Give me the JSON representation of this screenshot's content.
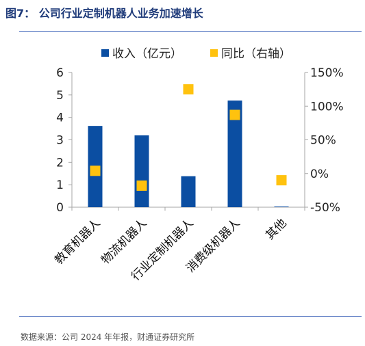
{
  "figure": {
    "title": "图7：  公司行业定制机器人业务加速增长",
    "source": "数据来源：公司 2024 年年报，财通证券研究所"
  },
  "colors": {
    "bar": "#0b4ea2",
    "marker": "#ffc20e",
    "rule": "#3d63b8",
    "title": "#1f3b7a",
    "axis": "#a6a6a6"
  },
  "chart_data": {
    "type": "bar",
    "categories": [
      "教育机器人",
      "物流机器人",
      "行业定制机器人",
      "消费级机器人",
      "其他"
    ],
    "series": [
      {
        "name": "收入（亿元）",
        "type": "bar",
        "axis": "left",
        "values": [
          3.62,
          3.2,
          1.38,
          4.75,
          0.03
        ]
      },
      {
        "name": "同比（右轴）",
        "type": "scatter",
        "axis": "right",
        "values": [
          4,
          -18,
          125,
          87,
          -10
        ]
      }
    ],
    "y_left": {
      "ylim": [
        0,
        6
      ],
      "ticks": [
        "0",
        "1",
        "2",
        "3",
        "4",
        "5",
        "6"
      ]
    },
    "y_right": {
      "ylim": [
        -50,
        150
      ],
      "ticks": [
        "-50%",
        "0%",
        "50%",
        "100%",
        "150%"
      ]
    },
    "legend": {
      "position": "top",
      "entries": [
        "收入（亿元）",
        "同比（右轴）"
      ]
    },
    "grid": false
  }
}
